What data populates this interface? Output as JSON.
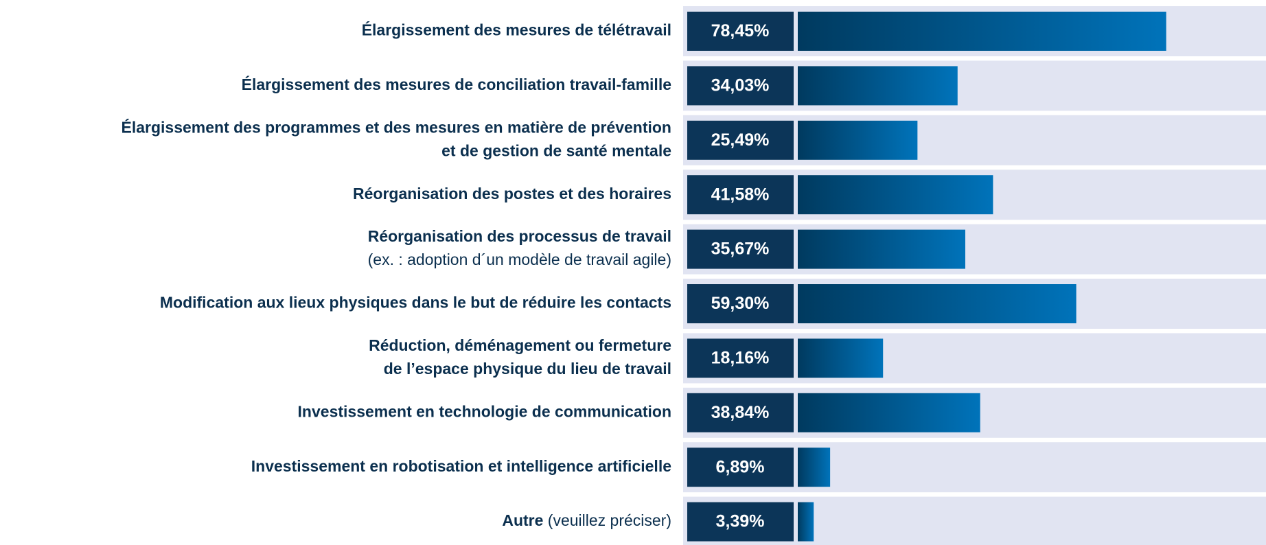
{
  "chart_data": {
    "type": "bar",
    "orientation": "horizontal",
    "categories": [
      [
        "Élargissement des mesures de télétravail"
      ],
      [
        "Élargissement des mesures de conciliation travail-famille"
      ],
      [
        "Élargissement des programmes et des mesures en matière de prévention",
        "et de gestion de santé mentale"
      ],
      [
        "Réorganisation des postes et des horaires"
      ],
      [
        "Réorganisation des processus de travail"
      ],
      [
        "Modification aux lieux physiques dans le but de réduire les contacts"
      ],
      [
        "Réduction, déménagement ou fermeture",
        "de l’espace physique du lieu de travail"
      ],
      [
        "Investissement en technologie de communication"
      ],
      [
        "Investissement en robotisation et intelligence artificielle"
      ],
      [
        "Autre"
      ]
    ],
    "category_notes": [
      null,
      null,
      null,
      null,
      "(ex. : adoption d´un modèle de travail agile)",
      null,
      null,
      null,
      null,
      "(veuillez préciser)"
    ],
    "values": [
      78.45,
      34.03,
      25.49,
      41.58,
      35.67,
      59.3,
      18.16,
      38.84,
      6.89,
      3.39
    ],
    "value_labels": [
      "78,45%",
      "34,03%",
      "25,49%",
      "41,58%",
      "35,67%",
      "59,30%",
      "18,16%",
      "38,84%",
      "6,89%",
      "3,39%"
    ],
    "xlim": [
      0,
      100
    ],
    "colors": {
      "start": "#003a5f",
      "end": "#0073ba",
      "panel": "#e1e4f2",
      "label_box": "#0c3558"
    }
  }
}
